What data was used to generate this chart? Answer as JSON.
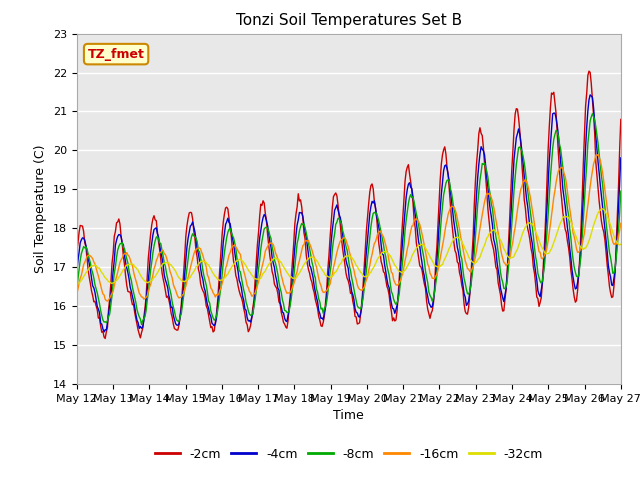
{
  "title": "Tonzi Soil Temperatures Set B",
  "xlabel": "Time",
  "ylabel": "Soil Temperature (C)",
  "ylim": [
    14.0,
    23.0
  ],
  "yticks": [
    14.0,
    15.0,
    16.0,
    17.0,
    18.0,
    19.0,
    20.0,
    21.0,
    22.0,
    23.0
  ],
  "xtick_labels": [
    "May 12",
    "May 13",
    "May 14",
    "May 15",
    "May 16",
    "May 17",
    "May 18",
    "May 19",
    "May 20",
    "May 21",
    "May 22",
    "May 23",
    "May 24",
    "May 25",
    "May 26",
    "May 27"
  ],
  "series_colors": [
    "#cc0000",
    "#0000cc",
    "#00aa00",
    "#ff8800",
    "#dddd00"
  ],
  "series_labels": [
    "-2cm",
    "-4cm",
    "-8cm",
    "-16cm",
    "-32cm"
  ],
  "annotation_text": "TZ_fmet",
  "annotation_bg": "#ffffcc",
  "annotation_border": "#cc8800",
  "plot_bg": "#e8e8e8",
  "title_fontsize": 11,
  "axis_fontsize": 9,
  "tick_fontsize": 8,
  "legend_fontsize": 9,
  "n_points": 480,
  "n_days": 15
}
